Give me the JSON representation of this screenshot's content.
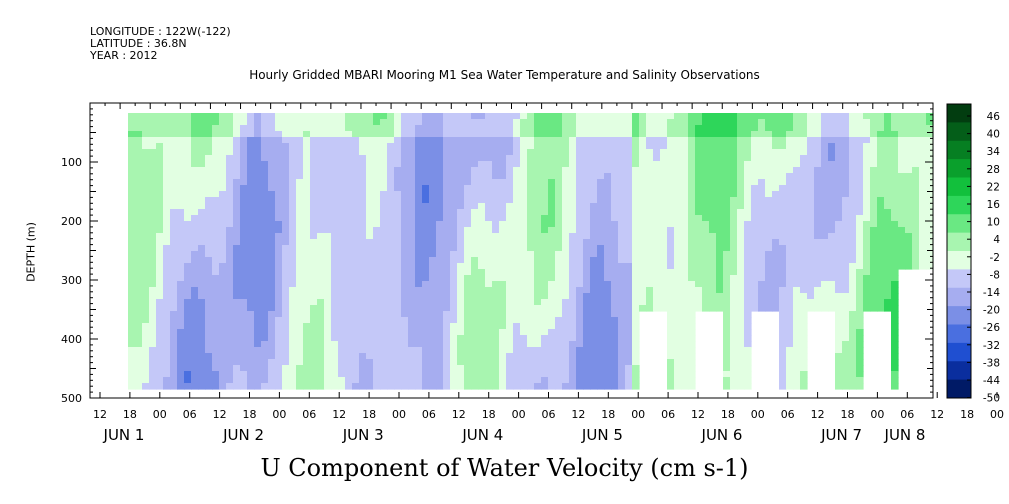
{
  "header": {
    "longitude": "LONGITUDE : 122W(-122)",
    "latitude": "LATITUDE : 36.8N",
    "year": "YEAR : 2012"
  },
  "chart_data": {
    "type": "heatmap",
    "title": "Hourly Gridded MBARI Mooring M1 Sea Water Temperature and Salinity Observations",
    "bottom_title": "U Component of Water Velocity (cm s-1)",
    "ylabel": "DEPTH (m)",
    "y_ticks": [
      "100",
      "200",
      "300",
      "400",
      "500"
    ],
    "ylim": [
      500,
      0
    ],
    "x_hour_labels": [
      "12",
      "18",
      "00",
      "06",
      "12",
      "18",
      "00",
      "06",
      "12",
      "18",
      "00",
      "06",
      "12",
      "18",
      "00",
      "06",
      "12",
      "18",
      "00",
      "06",
      "12",
      "18",
      "00",
      "06",
      "12",
      "18",
      "00",
      "06",
      "12",
      "18",
      "00",
      "06"
    ],
    "x_day_labels": [
      "JUN 1",
      "JUN 2",
      "JUN 3",
      "JUN 4",
      "JUN 5",
      "JUN 6",
      "JUN 7",
      "JUN 8"
    ],
    "colorbar_labels": [
      "46",
      "40",
      "34",
      "28",
      "22",
      "16",
      "10",
      "4",
      "-2",
      "-8",
      "-14",
      "-20",
      "-26",
      "-32",
      "-38",
      "-44",
      "-50"
    ],
    "colorbar_range": [
      -50,
      52
    ],
    "colormap": [
      "#001a66",
      "#0a2e9e",
      "#1f4fd1",
      "#4a6fe0",
      "#7b8fe6",
      "#a6adf0",
      "#c4c8f8",
      "#e2ffe2",
      "#a8f5b0",
      "#6ae883",
      "#2ed65a",
      "#12c03c",
      "#0aa02c",
      "#067f22",
      "#045e19",
      "#023d10"
    ],
    "grid_fill_color_primary": "#a6adf0",
    "grid_fill_color_secondary": "#6ae883"
  }
}
